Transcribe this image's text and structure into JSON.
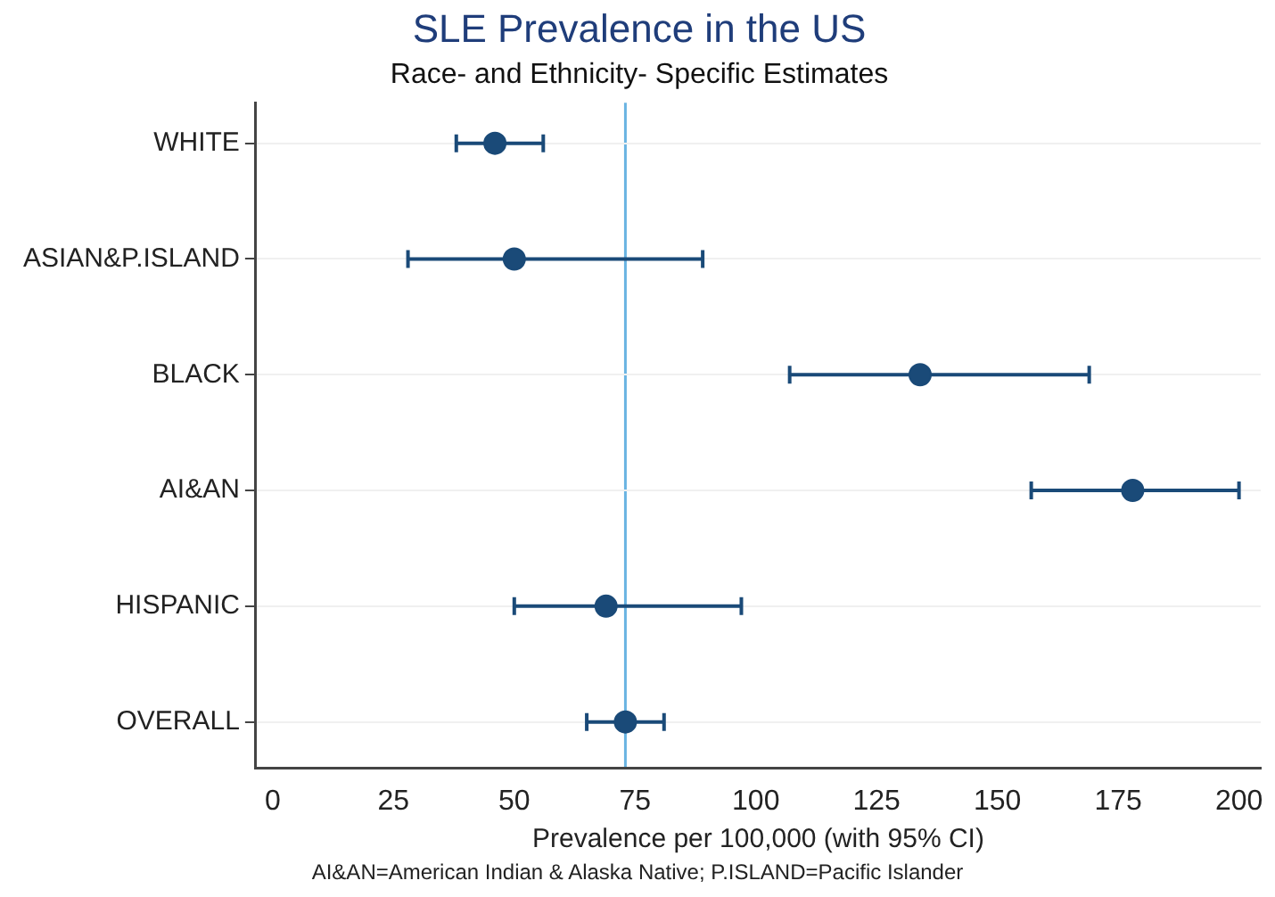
{
  "chart_data": {
    "type": "scatter",
    "orientation": "horizontal",
    "title": "SLE Prevalence in the US",
    "subtitle": "Race- and Ethnicity- Specific Estimates",
    "xlabel": "Prevalence per 100,000 (with 95% CI)",
    "categories": [
      "WHITE",
      "ASIAN&P.ISLAND",
      "BLACK",
      "AI&AN",
      "HISPANIC",
      "OVERALL"
    ],
    "values": [
      46,
      50,
      134,
      178,
      69,
      73
    ],
    "errors": [
      [
        38,
        56
      ],
      [
        28,
        89
      ],
      [
        107,
        169
      ],
      [
        157,
        200
      ],
      [
        50,
        97
      ],
      [
        65,
        81
      ]
    ],
    "color": "#1a4a78",
    "marker": "circle",
    "xlim": [
      -3.5,
      204.5
    ],
    "xticks": [
      0,
      25,
      50,
      75,
      100,
      125,
      150,
      175,
      200
    ],
    "ref_lines": [
      {
        "axis": "x",
        "value": 73,
        "color": "#6ab4e2"
      }
    ],
    "grid": "y",
    "legend": false,
    "annotations": [
      "AI&AN=American Indian & Alaska Native; P.ISLAND=Pacific Islander"
    ]
  }
}
